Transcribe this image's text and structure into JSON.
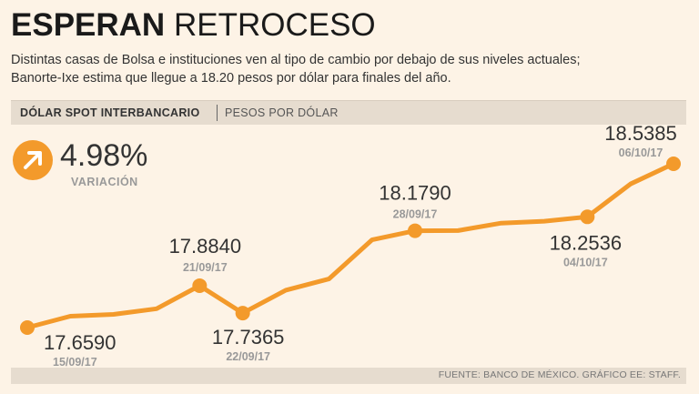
{
  "header": {
    "title_bold": "ESPERAN",
    "title_light": "RETROCESO",
    "subtitle_line1": "Distintas casas de Bolsa e instituciones ven al tipo de cambio por debajo de sus niveles actuales;",
    "subtitle_line2": "Banorte-Ixe estima que llegue a 18.20 pesos por dólar para finales del año."
  },
  "label_bar": {
    "primary": "DÓLAR SPOT INTERBANCARIO",
    "secondary": "PESOS POR DÓLAR"
  },
  "variation": {
    "value": "4.98%",
    "label": "VARIACIÓN",
    "icon": "arrow-up-right-icon"
  },
  "footer": {
    "source": "FUENTE: BANCO DE MÉXICO. GRÁFICO EE: STAFF."
  },
  "colors": {
    "line": "#f39a2b",
    "background": "#fdf3e6",
    "band": "#e6dccf"
  },
  "chart_data": {
    "type": "line",
    "ylabel": "PESOS POR DÓLAR",
    "ylim": [
      17.55,
      18.6
    ],
    "series": [
      {
        "values": [
          17.659,
          17.72,
          17.73,
          17.76,
          17.884,
          17.7365,
          17.86,
          17.92,
          18.13,
          18.179,
          18.18,
          18.22,
          18.23,
          18.2536,
          18.43,
          18.5385
        ]
      }
    ],
    "labeled_points": [
      {
        "index": 0,
        "value": "17.6590",
        "date": "15/09/17"
      },
      {
        "index": 4,
        "value": "17.8840",
        "date": "21/09/17"
      },
      {
        "index": 5,
        "value": "17.7365",
        "date": "22/09/17"
      },
      {
        "index": 9,
        "value": "18.1790",
        "date": "28/09/17"
      },
      {
        "index": 13,
        "value": "18.2536",
        "date": "04/10/17"
      },
      {
        "index": 15,
        "value": "18.5385",
        "date": "06/10/17"
      }
    ]
  }
}
